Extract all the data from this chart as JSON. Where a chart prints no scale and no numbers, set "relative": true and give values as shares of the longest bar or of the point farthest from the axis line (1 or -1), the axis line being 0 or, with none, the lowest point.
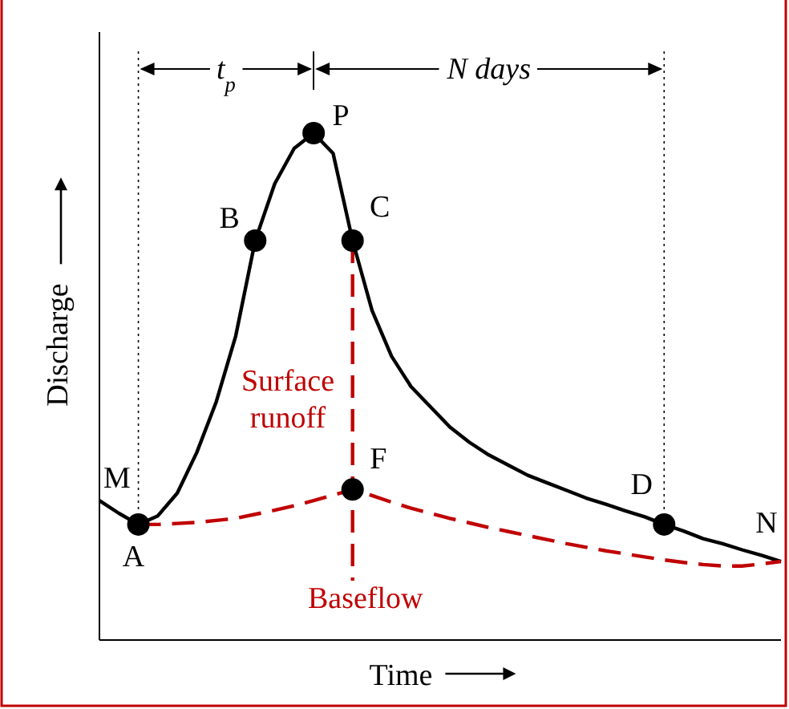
{
  "chart_data": {
    "type": "line",
    "relative": true,
    "xlabel": "Time",
    "ylabel": "Discharge",
    "categories": [
      null,
      null,
      null,
      null,
      null,
      null,
      null,
      null,
      null,
      null,
      null,
      null,
      null,
      null,
      null,
      null,
      null,
      null,
      null,
      null,
      null,
      null,
      null,
      null,
      null,
      null,
      null,
      null,
      null,
      null,
      null,
      null,
      null,
      null,
      null,
      null
    ],
    "series": [
      {
        "color": "#000000",
        "line_style": "solid",
        "values": [
          0.275,
          0.25,
          0.228,
          0.245,
          0.29,
          0.37,
          0.47,
          0.6,
          0.788,
          0.9,
          0.97,
          1,
          0.96,
          0.788,
          0.65,
          0.56,
          0.5,
          0.46,
          0.42,
          0.39,
          0.365,
          0.345,
          0.325,
          0.31,
          0.295,
          0.28,
          0.268,
          0.255,
          0.243,
          0.228,
          0.215,
          0.2,
          0.19,
          0.178,
          0.167,
          0.155
        ]
      },
      {
        "color": "#c00000",
        "line_style": "dashed",
        "values": [
          null,
          null,
          0.228,
          0.228,
          0.23,
          0.232,
          0.236,
          0.24,
          0.248,
          0.256,
          0.265,
          0.275,
          0.286,
          0.297,
          0.285,
          0.272,
          0.26,
          0.25,
          0.24,
          0.231,
          0.222,
          0.214,
          0.206,
          0.198,
          0.19,
          0.183,
          0.176,
          0.17,
          0.164,
          0.158,
          0.153,
          0.149,
          0.146,
          0.146,
          0.15,
          0.155
        ]
      }
    ],
    "annotations": [
      "t$_{p}$",
      "N days",
      "M",
      "A",
      "B",
      "P",
      "C",
      "F",
      "D",
      "N",
      "Surface runoff",
      "Baseflow"
    ]
  }
}
